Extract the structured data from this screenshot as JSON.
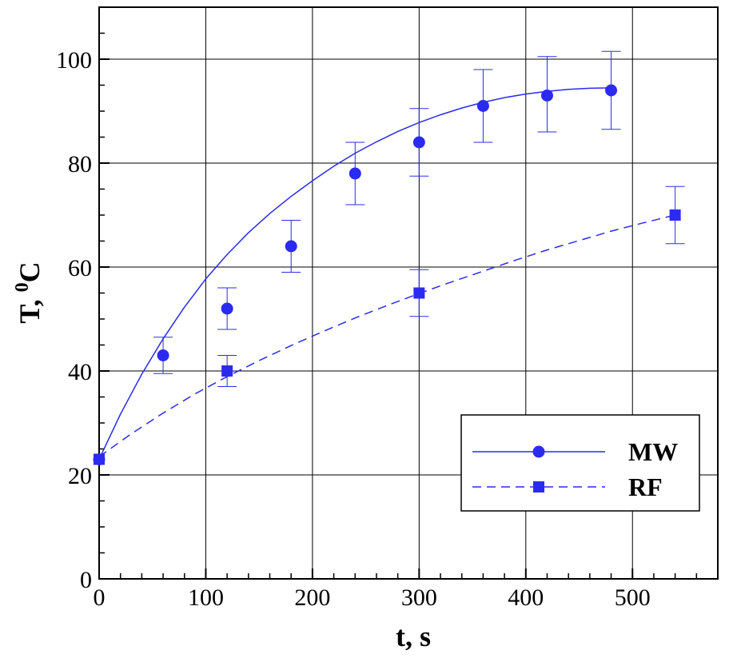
{
  "chart_data": {
    "type": "scatter",
    "xlabel": "t, s",
    "ylabel_main": "T, ",
    "ylabel_sup": "0",
    "ylabel_unit": "C",
    "xlim": [
      0,
      580
    ],
    "ylim": [
      0,
      110
    ],
    "xticks": [
      0,
      100,
      200,
      300,
      400,
      500
    ],
    "yticks": [
      0,
      20,
      40,
      60,
      80,
      100
    ],
    "grid": true,
    "legend_position": "lower-right",
    "series": [
      {
        "name": "MW",
        "marker": "circle",
        "line_style": "solid",
        "color": "#2b2bf0",
        "x": [
          0,
          60,
          120,
          180,
          240,
          300,
          360,
          420,
          480
        ],
        "y": [
          23,
          43,
          52,
          64,
          78,
          84,
          91,
          93,
          94
        ],
        "err_low": [
          0,
          39.5,
          48,
          59,
          72,
          77.5,
          84,
          86,
          86.5
        ],
        "err_high": [
          0,
          46.5,
          56,
          69,
          84,
          90.5,
          98,
          100.5,
          101.5
        ],
        "fit_x": [
          0,
          20,
          40,
          60,
          80,
          100,
          120,
          140,
          160,
          180,
          200,
          220,
          240,
          260,
          280,
          300,
          320,
          340,
          360,
          380,
          400,
          420,
          440,
          460,
          480
        ],
        "fit_y": [
          23,
          31.7,
          39.4,
          46.2,
          52.3,
          57.7,
          62.4,
          66.6,
          70.3,
          73.6,
          76.6,
          79.4,
          81.9,
          84.1,
          86.1,
          87.8,
          89.3,
          90.6,
          91.7,
          92.6,
          93.3,
          93.8,
          94.2,
          94.4,
          94.5
        ]
      },
      {
        "name": "RF",
        "marker": "square",
        "line_style": "dashed",
        "color": "#2b2bf0",
        "x": [
          0,
          120,
          300,
          540
        ],
        "y": [
          23,
          40,
          55,
          70
        ],
        "err_low": [
          0,
          37,
          50.5,
          64.5
        ],
        "err_high": [
          0,
          43,
          59.5,
          75.5
        ],
        "fit_x": [
          0,
          30,
          60,
          90,
          120,
          150,
          180,
          210,
          240,
          270,
          300,
          330,
          360,
          390,
          420,
          450,
          480,
          510,
          540
        ],
        "fit_y": [
          23.5,
          27.9,
          31.9,
          35.6,
          38.9,
          42.0,
          44.9,
          47.6,
          50.2,
          52.6,
          54.9,
          57.1,
          59.2,
          61.3,
          63.3,
          65.1,
          66.9,
          68.5,
          70.0
        ]
      }
    ]
  }
}
